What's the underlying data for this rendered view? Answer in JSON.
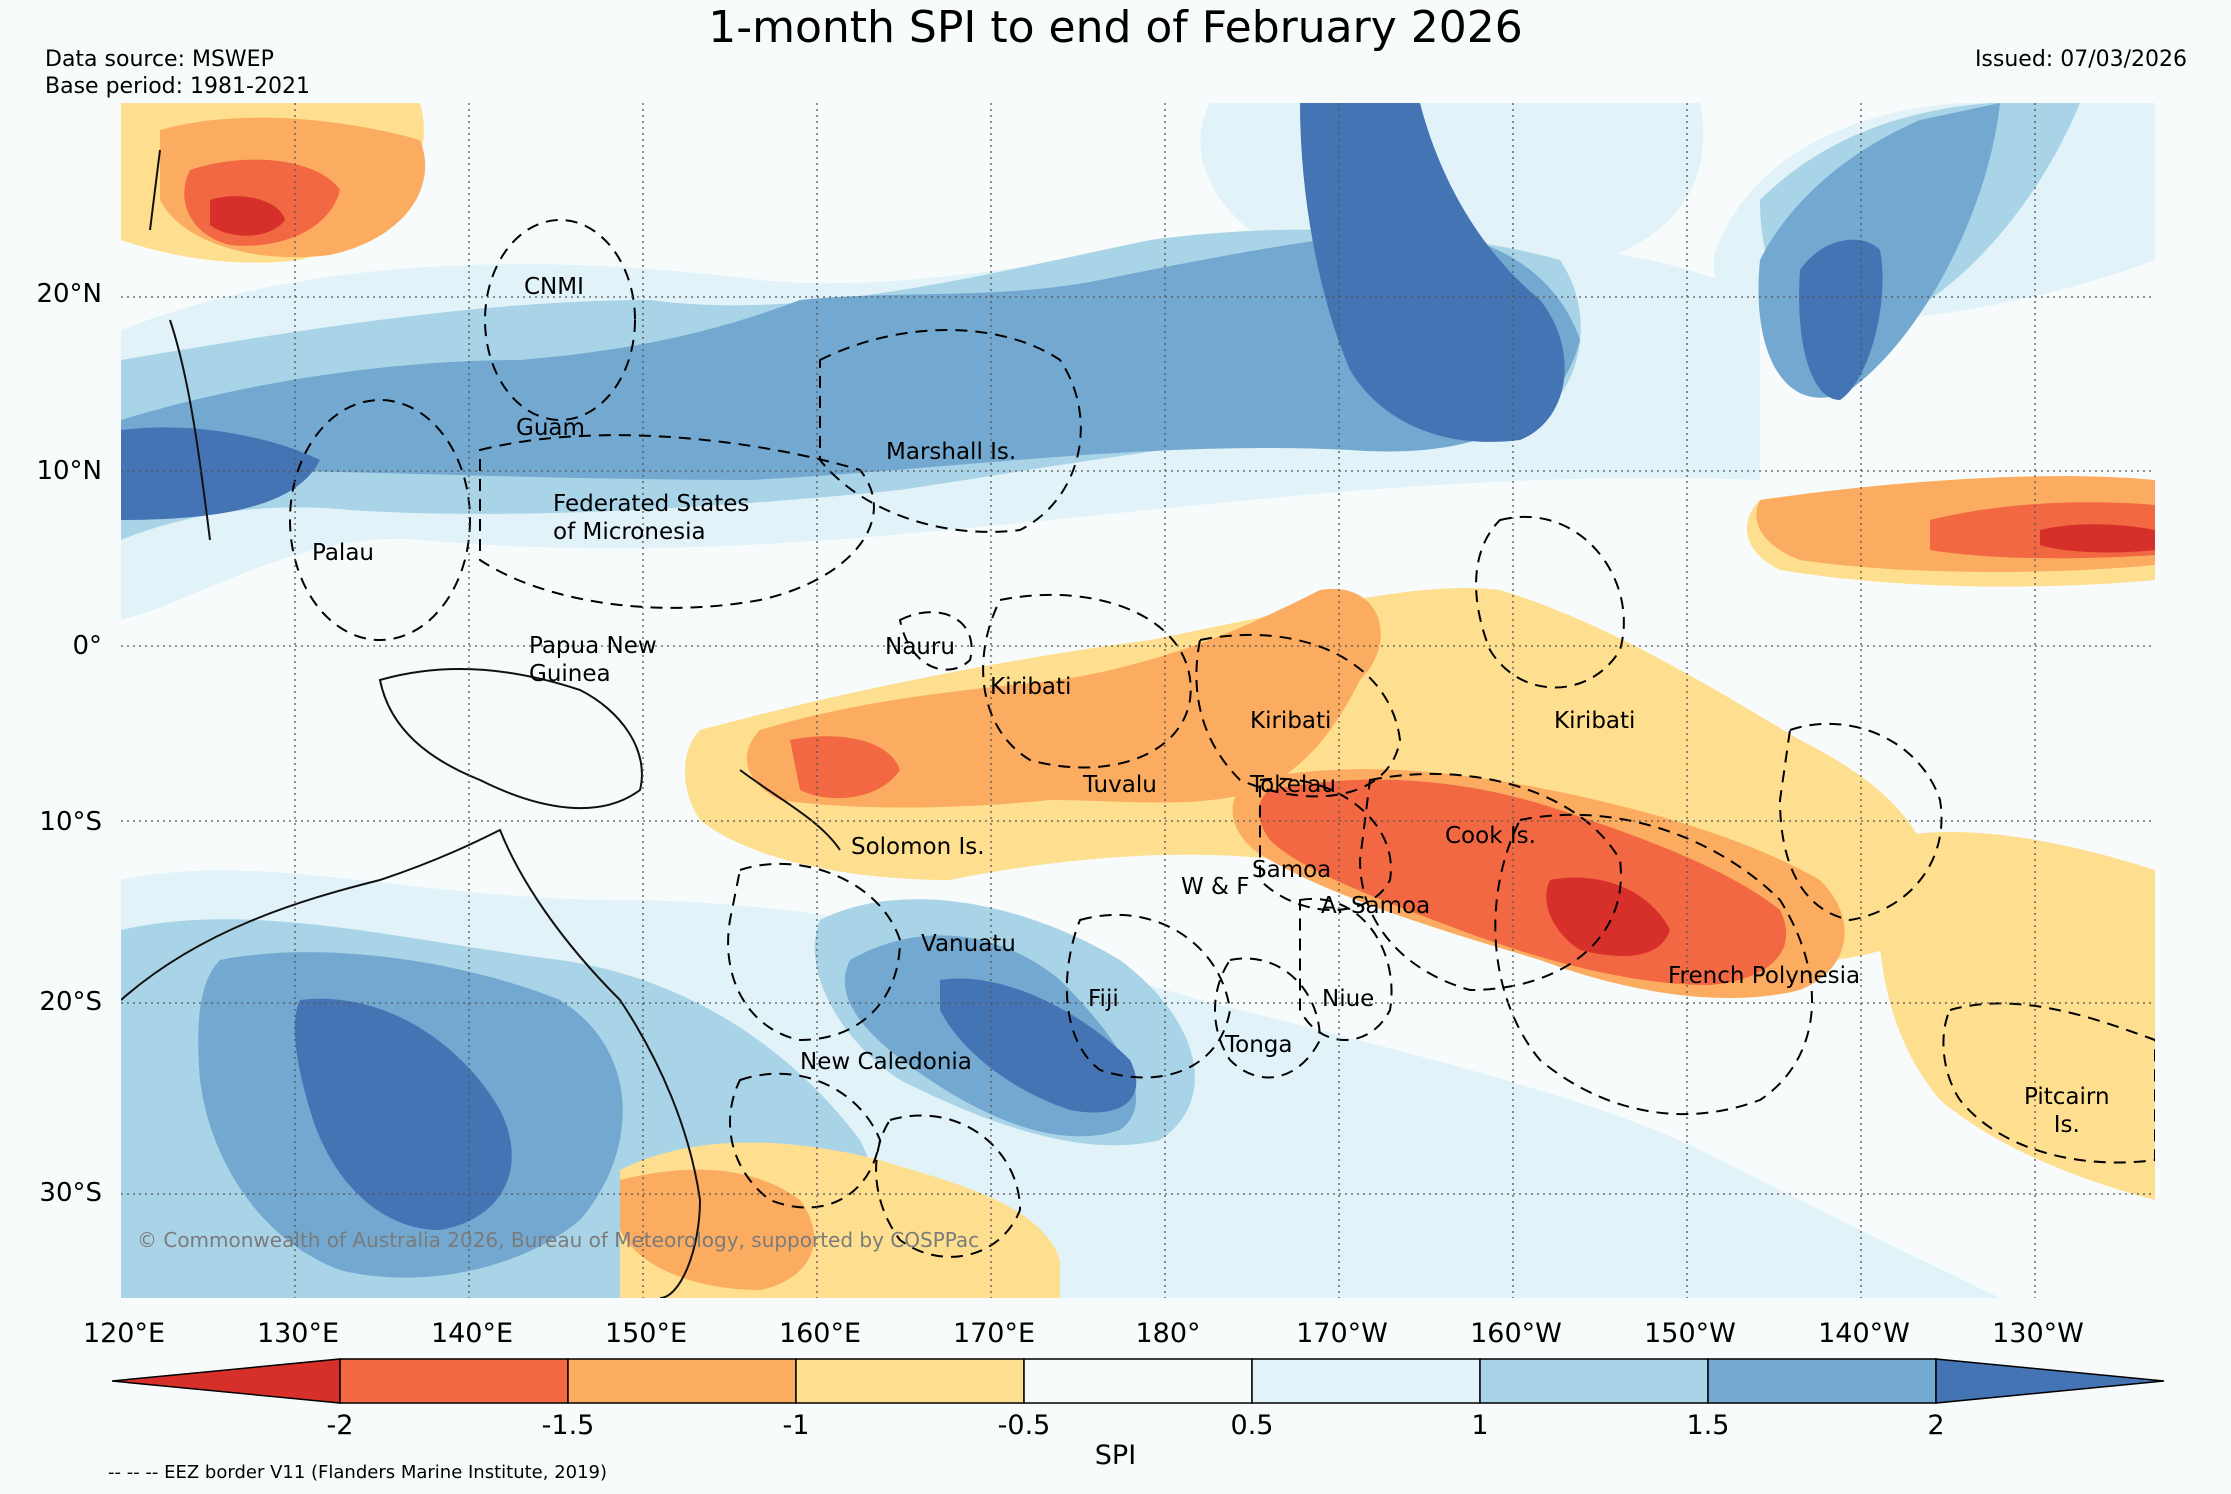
{
  "title": "1-month SPI to end of February 2026",
  "data_source": "Data source: MSWEP",
  "base_period": "Base period: 1981-2021",
  "issued": "Issued: 07/03/2026",
  "copyright": "© Commonwealth of Australia 2026, Bureau of Meteorology, supported by COSPPac",
  "eez_note": "-- -- -- EEZ border V11 (Flanders Marine Institute, 2019)",
  "map": {
    "lon_range": [
      120,
      237
    ],
    "lat_range": [
      -37,
      31
    ],
    "latitude_labels": [
      "20°N",
      "10°N",
      "0°",
      "10°S",
      "20°S",
      "30°S"
    ],
    "longitude_labels": [
      "120°E",
      "130°E",
      "140°E",
      "150°E",
      "160°E",
      "170°E",
      "180°",
      "170°W",
      "160°W",
      "150°W",
      "140°W",
      "130°W"
    ],
    "gridlines": "dotted"
  },
  "places": [
    {
      "name": "CNMI"
    },
    {
      "name": "Guam"
    },
    {
      "name": "Marshall Is."
    },
    {
      "name": "Federated States\nof Micronesia"
    },
    {
      "name": "Palau"
    },
    {
      "name": "Papua New\nGuinea"
    },
    {
      "name": "Nauru"
    },
    {
      "name": "Kiribati"
    },
    {
      "name": "Kiribati"
    },
    {
      "name": "Kiribati"
    },
    {
      "name": "Tuvalu"
    },
    {
      "name": "Tokelau"
    },
    {
      "name": "Cook Is."
    },
    {
      "name": "Solomon Is."
    },
    {
      "name": "Samoa"
    },
    {
      "name": "W & F"
    },
    {
      "name": "A. Samoa"
    },
    {
      "name": "Vanuatu"
    },
    {
      "name": "Fiji"
    },
    {
      "name": "Niue"
    },
    {
      "name": "French Polynesia"
    },
    {
      "name": "Tonga"
    },
    {
      "name": "New Caledonia"
    },
    {
      "name": "Pitcairn\nIs."
    }
  ],
  "colorbar": {
    "label": "SPI",
    "ticks": [
      "-2",
      "-1.5",
      "-1",
      "-0.5",
      "0.5",
      "1",
      "1.5",
      "2"
    ],
    "colors": [
      "#d7302a",
      "#f26842",
      "#fcac60",
      "#fedf8f",
      "#f7fbfc",
      "#e1f3f8",
      "#a9d4e7",
      "#73a9d0",
      "#4574b5"
    ]
  }
}
